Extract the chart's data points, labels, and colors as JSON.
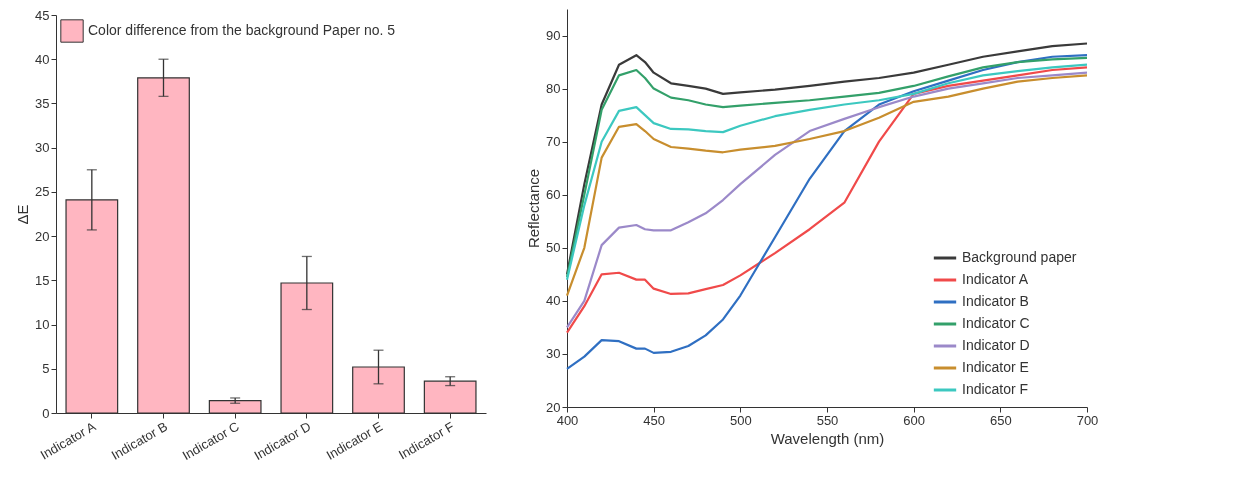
{
  "chart_data": [
    {
      "type": "bar",
      "ylabel": "ΔE",
      "categories": [
        "Indicator A",
        "Indicator B",
        "Indicator C",
        "Indicator D",
        "Indicator E",
        "Indicator F"
      ],
      "ylim": [
        0,
        45
      ],
      "yticks": [
        0,
        5,
        10,
        15,
        20,
        25,
        30,
        35,
        40,
        45
      ],
      "legend": "top left",
      "series": [
        {
          "name": "Color difference from the background Paper no. 5",
          "color": "#ffb6c1",
          "values": [
            24.1,
            37.9,
            1.4,
            14.7,
            5.2,
            3.6
          ],
          "errors": [
            3.4,
            2.1,
            0.3,
            3.0,
            1.9,
            0.5
          ]
        }
      ]
    },
    {
      "type": "line",
      "xlabel": "Wavelength  (nm)",
      "ylabel": "Reflectance",
      "xlim": [
        400,
        700
      ],
      "xticks": [
        400,
        450,
        500,
        550,
        600,
        650,
        700
      ],
      "ylim": [
        20,
        95
      ],
      "yticks": [
        20,
        30,
        40,
        50,
        60,
        70,
        80,
        90
      ],
      "legend": "bottom right",
      "x": [
        400,
        410,
        420,
        430,
        440,
        445,
        450,
        460,
        470,
        480,
        490,
        500,
        520,
        540,
        560,
        580,
        600,
        620,
        640,
        660,
        680,
        700
      ],
      "series": [
        {
          "name": "Background paper",
          "color": "#3a3a3a",
          "values": [
            45,
            62,
            77,
            84.5,
            86.3,
            85,
            83,
            81,
            80.5,
            80,
            79,
            79.3,
            79.8,
            80.5,
            81.3,
            82,
            83,
            84.5,
            86,
            87,
            88,
            88.5
          ]
        },
        {
          "name": "Indicator A",
          "color": "#f04a4a",
          "values": [
            34,
            39,
            45,
            45.3,
            44,
            44,
            42.3,
            41.3,
            41.4,
            42.2,
            43,
            44.8,
            49,
            53.5,
            58.5,
            70,
            79,
            80.5,
            81.5,
            82.5,
            83.5,
            84
          ]
        },
        {
          "name": "Indicator B",
          "color": "#2f6fc2",
          "values": [
            27.2,
            29.5,
            32.6,
            32.4,
            31,
            31,
            30.2,
            30.4,
            31.5,
            33.5,
            36.5,
            41,
            52,
            63,
            72,
            77,
            79.5,
            81.5,
            83.5,
            85,
            86,
            86.3
          ]
        },
        {
          "name": "Indicator C",
          "color": "#33a06a",
          "values": [
            44.5,
            60,
            76,
            82.5,
            83.5,
            82,
            80,
            78.3,
            77.8,
            77,
            76.5,
            76.8,
            77.3,
            77.8,
            78.5,
            79.2,
            80.5,
            82.3,
            84,
            85,
            85.5,
            85.8
          ]
        },
        {
          "name": "Indicator D",
          "color": "#9b89c9",
          "values": [
            35,
            40,
            50.5,
            53.8,
            54.3,
            53.5,
            53.3,
            53.3,
            54.8,
            56.5,
            59,
            62,
            67.5,
            72,
            74.3,
            76.5,
            78.5,
            80,
            81,
            82,
            82.5,
            83
          ]
        },
        {
          "name": "Indicator E",
          "color": "#c88e2e",
          "values": [
            41,
            50,
            67,
            72.8,
            73.3,
            72,
            70.5,
            69,
            68.7,
            68.3,
            68,
            68.5,
            69.2,
            70.5,
            72,
            74.5,
            77.5,
            78.5,
            80,
            81.3,
            82,
            82.5
          ]
        },
        {
          "name": "Indicator F",
          "color": "#3cc8c0",
          "values": [
            44,
            58,
            70,
            75.8,
            76.5,
            75,
            73.5,
            72.4,
            72.3,
            72,
            71.8,
            73,
            74.8,
            76,
            77,
            77.8,
            79,
            81,
            82.5,
            83.3,
            84,
            84.5
          ]
        }
      ]
    }
  ]
}
